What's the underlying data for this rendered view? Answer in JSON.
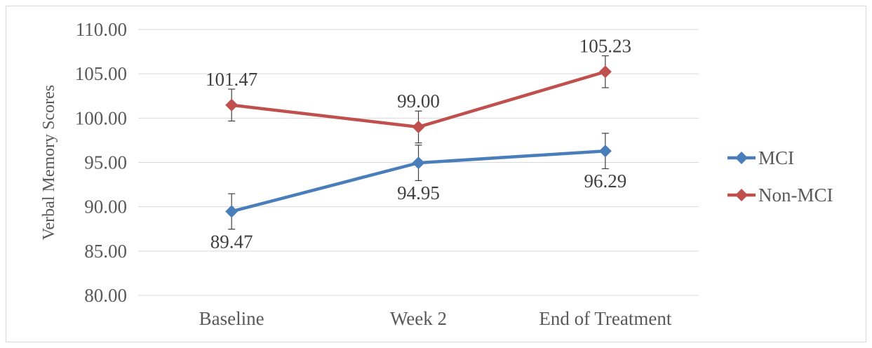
{
  "chart_data": {
    "type": "line",
    "categories": [
      "Baseline",
      "Week 2",
      "End of Treatment"
    ],
    "series": [
      {
        "name": "MCI",
        "values": [
          89.47,
          94.95,
          96.29
        ],
        "value_labels": [
          "89.47",
          "94.95",
          "96.29"
        ],
        "error": [
          2.0,
          2.0,
          2.0
        ],
        "color": "#4a7ebb"
      },
      {
        "name": "Non-MCI",
        "values": [
          101.47,
          99.0,
          105.23
        ],
        "value_labels": [
          "101.47",
          "99.00",
          "105.23"
        ],
        "error": [
          1.8,
          1.8,
          1.8
        ],
        "color": "#c0504d"
      }
    ],
    "ylabel": "Verbal Memory Scores",
    "xlabel": "",
    "ylim": [
      80,
      110
    ],
    "ytick_step": 5,
    "ytick_labels": [
      "80.00",
      "85.00",
      "90.00",
      "95.00",
      "100.00",
      "105.00",
      "110.00"
    ],
    "grid": true,
    "legend_position": "right",
    "gridline_color": "#d9d9d9"
  }
}
